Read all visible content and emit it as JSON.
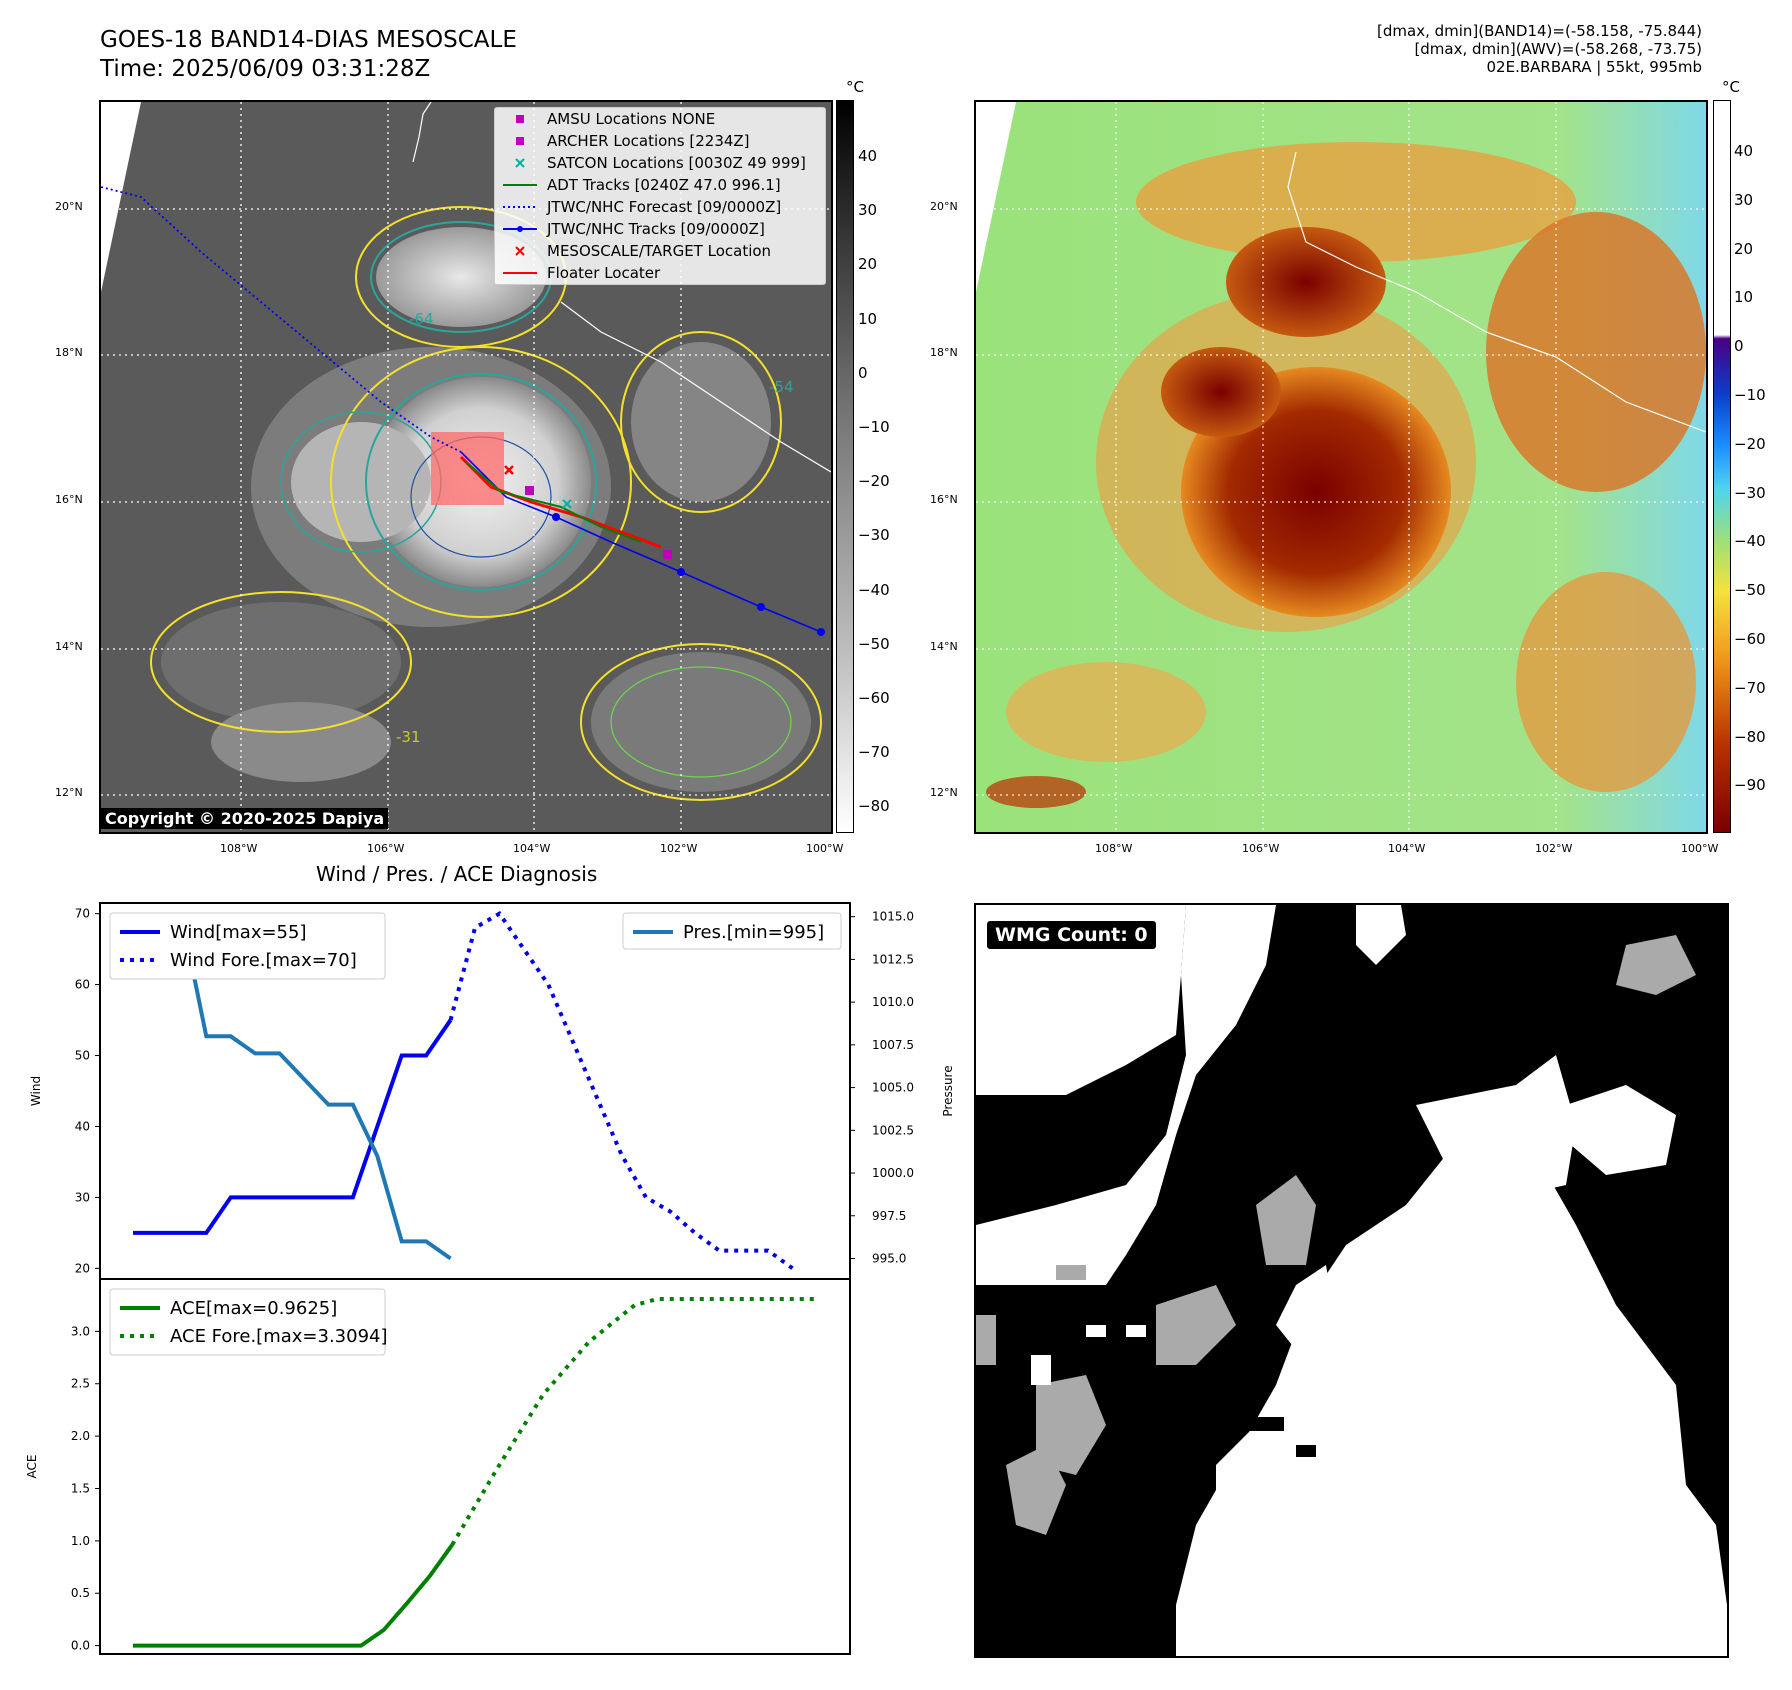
{
  "header": {
    "title_line1": "GOES-18 BAND14-DIAS MESOSCALE",
    "title_line2": "Time: 2025/06/09 03:31:28Z",
    "stats_line1": "[dmax, dmin](BAND14)=(-58.158, -75.844)",
    "stats_line2": "[dmax, dmin](AWV)=(-58.268, -73.75)",
    "stats_line3": "02E.BARBARA | 55kt, 995mb"
  },
  "map": {
    "lat_labels": [
      "20°N",
      "18°N",
      "16°N",
      "14°N",
      "12°N"
    ],
    "lon_labels": [
      "108°W",
      "106°W",
      "104°W",
      "102°W",
      "100°W"
    ],
    "copyright": "Copyright © 2020-2025 Dapiya",
    "contour_labels": [
      "-64",
      "-54",
      "-31"
    ],
    "legend": [
      {
        "label": "AMSU Locations NONE",
        "color": "#c000c0",
        "kind": "square"
      },
      {
        "label": "ARCHER Locations [2234Z]",
        "color": "#c000c0",
        "kind": "square"
      },
      {
        "label": "SATCON Locations [0030Z 49 999]",
        "color": "#00b0a0",
        "kind": "x"
      },
      {
        "label": "ADT Tracks [0240Z 47.0 996.1]",
        "color": "#008000",
        "kind": "line"
      },
      {
        "label": "JTWC/NHC Forecast [09/0000Z]",
        "color": "#0000ff",
        "kind": "dotted"
      },
      {
        "label": "JTWC/NHC Tracks [09/0000Z]",
        "color": "#0000ff",
        "kind": "linedot"
      },
      {
        "label": "MESOSCALE/TARGET Location",
        "color": "#ff0000",
        "kind": "x"
      },
      {
        "label": "Floater Locater",
        "color": "#ff0000",
        "kind": "line"
      }
    ]
  },
  "colorbar_ir": {
    "unit": "°C",
    "ticks": [
      "40",
      "30",
      "20",
      "10",
      "0",
      "−10",
      "−20",
      "−30",
      "−40",
      "−50",
      "−60",
      "−70",
      "−80"
    ]
  },
  "colorbar_wv": {
    "unit": "°C",
    "ticks": [
      "40",
      "30",
      "20",
      "10",
      "0",
      "−10",
      "−20",
      "−30",
      "−40",
      "−50",
      "−60",
      "−70",
      "−80",
      "−90"
    ]
  },
  "wmg": {
    "badge": "WMG Count: 0"
  },
  "chart_data": [
    {
      "type": "line",
      "title": "Wind / Pres. / ACE Diagnosis",
      "ylabel": "Wind",
      "ylabel_right": "Pressure",
      "ylim": [
        18.5,
        71.5
      ],
      "ylim_right": [
        993.8,
        1015.8
      ],
      "yticks": [
        "70",
        "60",
        "50",
        "40",
        "30",
        "20"
      ],
      "yticks_right": [
        "1015.0",
        "1012.5",
        "1010.0",
        "1007.5",
        "1005.0",
        "1002.5",
        "1000.0",
        "997.5",
        "995.0"
      ],
      "series": [
        {
          "name": "Wind[max=55]",
          "axis": "left",
          "style": "solid",
          "color": "#0000ee",
          "x": [
            0,
            3,
            4,
            5,
            6,
            7,
            8,
            9,
            10,
            11,
            12,
            13
          ],
          "values": [
            25,
            25,
            30,
            30,
            30,
            30,
            30,
            30,
            40,
            50,
            50,
            55
          ]
        },
        {
          "name": "Wind Fore.[max=70]",
          "axis": "left",
          "style": "dotted",
          "color": "#0000ee",
          "x": [
            13,
            14,
            15,
            16,
            17,
            18,
            19,
            20,
            21,
            22,
            23,
            24,
            25,
            26,
            27
          ],
          "values": [
            55,
            68,
            70,
            65,
            60,
            52,
            44,
            36,
            30,
            28,
            25,
            22.5,
            22.5,
            22.5,
            20
          ]
        },
        {
          "name": "Pres.[min=995]",
          "axis": "right",
          "style": "solid",
          "color": "#1f77b4",
          "x": [
            0,
            1,
            2,
            3,
            4,
            5,
            6,
            7,
            8,
            9,
            10,
            11,
            12,
            13
          ],
          "values": [
            1015,
            1015,
            1015,
            1008,
            1008,
            1007,
            1007,
            1005.5,
            1004,
            1004,
            1001,
            996,
            996,
            995
          ]
        }
      ]
    },
    {
      "type": "line",
      "ylabel": "ACE",
      "ylim": [
        -0.08,
        3.5
      ],
      "yticks": [
        "3.0",
        "2.5",
        "2.0",
        "1.5",
        "1.0",
        "0.5",
        "0.0"
      ],
      "series": [
        {
          "name": "ACE[max=0.9625]",
          "style": "solid",
          "color": "#008000",
          "x": [
            0,
            10,
            11,
            12,
            13,
            14
          ],
          "values": [
            0,
            0,
            0.15,
            0.4,
            0.66,
            0.9625
          ]
        },
        {
          "name": "ACE Fore.[max=3.3094]",
          "style": "dotted",
          "color": "#008000",
          "x": [
            14,
            16,
            18,
            20,
            22,
            23,
            24,
            26,
            28,
            30
          ],
          "values": [
            0.9625,
            1.7,
            2.4,
            2.9,
            3.25,
            3.3094,
            3.3094,
            3.3094,
            3.3094,
            3.3094
          ]
        }
      ]
    }
  ]
}
